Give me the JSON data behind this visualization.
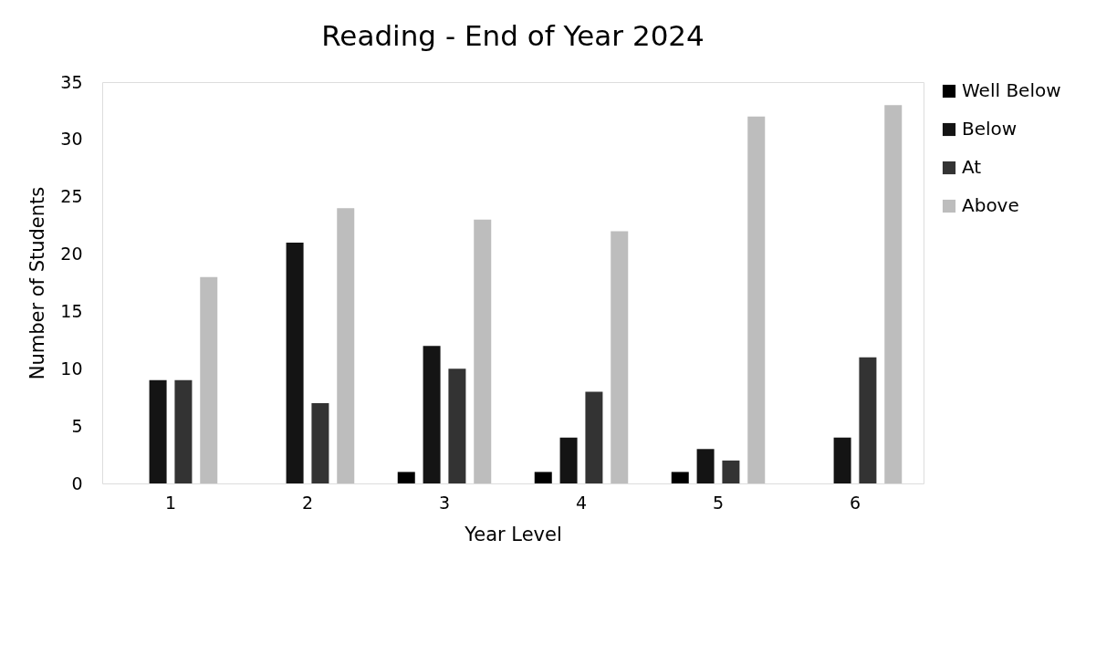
{
  "chart_data": {
    "type": "bar",
    "title": "Reading - End of Year 2024",
    "xlabel": "Year Level",
    "ylabel": "Number of Students",
    "categories": [
      "1",
      "2",
      "3",
      "4",
      "5",
      "6"
    ],
    "series": [
      {
        "name": "Well Below",
        "color": "#000000",
        "values": [
          0,
          0,
          1,
          1,
          1,
          0
        ]
      },
      {
        "name": "Below",
        "color": "#141414",
        "values": [
          9,
          21,
          12,
          4,
          3,
          4
        ]
      },
      {
        "name": "At",
        "color": "#333333",
        "values": [
          9,
          7,
          10,
          8,
          2,
          11
        ]
      },
      {
        "name": "Above",
        "color": "#bdbdbd",
        "values": [
          18,
          24,
          23,
          22,
          32,
          33
        ]
      }
    ],
    "ylim": [
      0,
      35
    ],
    "yticks": [
      0,
      5,
      10,
      15,
      20,
      25,
      30,
      35
    ],
    "grid": false,
    "legend": "right"
  }
}
